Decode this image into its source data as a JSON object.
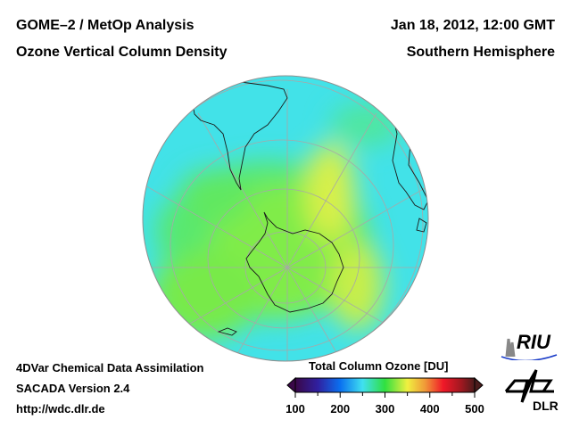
{
  "header": {
    "title_line1": "GOME–2 / MetOp Analysis",
    "title_line2": "Ozone Vertical Column Density",
    "date": "Jan 18, 2012, 12:00 GMT",
    "region": "Southern Hemisphere"
  },
  "footer": {
    "line1": "4DVar Chemical Data Assimilation",
    "line2": "SACADA Version 2.4",
    "url": "http://wdc.dlr.de"
  },
  "logos": {
    "riu": "RIU",
    "dlr": "DLR"
  },
  "chart_data": {
    "type": "heatmap",
    "projection": "orthographic, south polar",
    "title": "Ozone Vertical Column Density",
    "colorbar": {
      "label": "Total Column Ozone [DU]",
      "range": [
        100,
        500
      ],
      "ticks": [
        100,
        200,
        300,
        400,
        500
      ],
      "minor_ticks": [
        150,
        250,
        350,
        450
      ],
      "extend": "both",
      "stops": [
        {
          "value": 100,
          "color": "#3a0848"
        },
        {
          "value": 150,
          "color": "#3020a0"
        },
        {
          "value": 200,
          "color": "#0a70f0"
        },
        {
          "value": 250,
          "color": "#40e0f0"
        },
        {
          "value": 300,
          "color": "#30e040"
        },
        {
          "value": 350,
          "color": "#f0f040"
        },
        {
          "value": 390,
          "color": "#f09838"
        },
        {
          "value": 430,
          "color": "#f01828"
        },
        {
          "value": 470,
          "color": "#a01820"
        },
        {
          "value": 500,
          "color": "#4a1c1c"
        }
      ]
    },
    "field_summary": {
      "background_DU": 260,
      "antarctic_DU": 300,
      "maxima_DU": 340
    }
  }
}
